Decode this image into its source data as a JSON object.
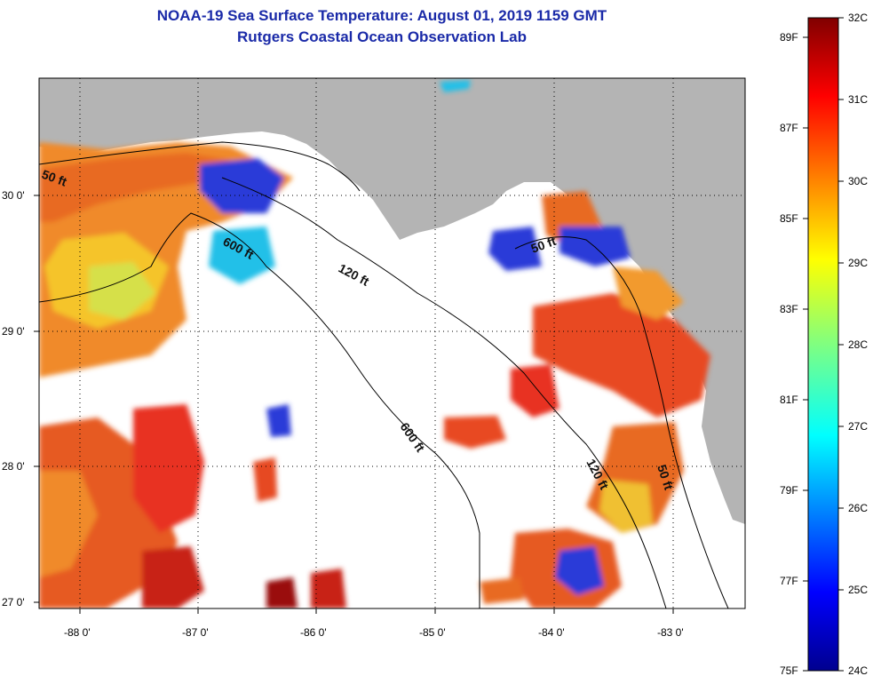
{
  "title_line1": "NOAA-19 Sea Surface Temperature:  August 01, 2019 1159 GMT",
  "title_line2": "Rutgers Coastal Ocean Observation Lab",
  "map": {
    "lon_ticks": [
      "-88 0'",
      "-87 0'",
      "-86 0'",
      "-85 0'",
      "-84 0'",
      "-83 0'"
    ],
    "lat_ticks": [
      "30 0'",
      "29 0'",
      "28 0'",
      "27 0'"
    ],
    "contour_labels": [
      "50 ft",
      "600 ft",
      "120 ft",
      "50 ft",
      "600 ft",
      "120 ft",
      "50 ft"
    ],
    "colors": {
      "land": "#b4b4b4",
      "ocean_nodata": "#ffffff",
      "frame": "#000000"
    }
  },
  "colorbar": {
    "celsius_labels": [
      "32C",
      "31C",
      "30C",
      "29C",
      "28C",
      "27C",
      "26C",
      "25C",
      "24C"
    ],
    "fahrenheit_labels": [
      "89F",
      "87F",
      "85F",
      "83F",
      "81F",
      "79F",
      "77F",
      "75F"
    ],
    "colormap": [
      "#00008f",
      "#0000ff",
      "#0080ff",
      "#00ffff",
      "#80ff80",
      "#ffff00",
      "#ff8000",
      "#ff0000",
      "#800000"
    ]
  }
}
